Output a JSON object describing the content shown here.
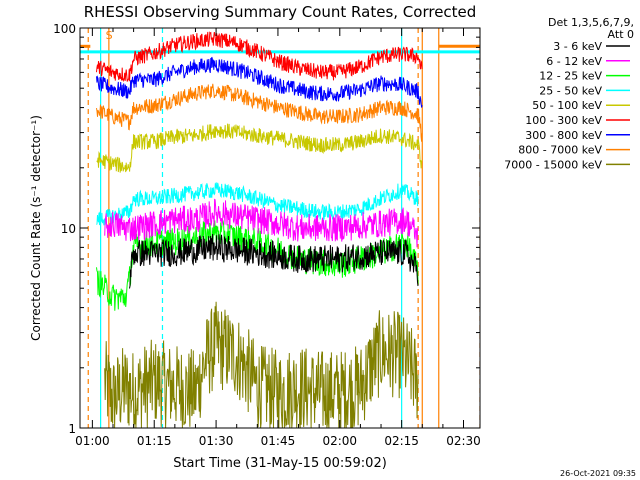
{
  "chart_data": {
    "type": "line",
    "title": "RHESSI Observing Summary Count Rates, Corrected",
    "xlabel": "Start Time (31-May-15 00:59:02)",
    "ylabel": "Corrected Count Rate (s⁻¹ detector⁻¹)",
    "timestamp": "26-Oct-2021 09:35",
    "legend_header": [
      "Det 1,3,5,6,7,9,",
      "Att 0"
    ],
    "legend_position": "right",
    "x_unit": "minutes since 01:00",
    "xlim": [
      -3,
      94
    ],
    "x_ticks": [
      {
        "value": 0,
        "label": "01:00"
      },
      {
        "value": 15,
        "label": "01:15"
      },
      {
        "value": 30,
        "label": "01:30"
      },
      {
        "value": 45,
        "label": "01:45"
      },
      {
        "value": 60,
        "label": "02:00"
      },
      {
        "value": 75,
        "label": "02:15"
      },
      {
        "value": 90,
        "label": "02:30"
      }
    ],
    "y_scale": "log",
    "ylim": [
      1,
      100
    ],
    "y_ticks": [
      {
        "value": 1,
        "label": "1"
      },
      {
        "value": 10,
        "label": "10"
      },
      {
        "value": 100,
        "label": "100"
      }
    ],
    "flag_label": "S",
    "series": [
      {
        "name": "3 - 6 keV",
        "color": "#000000",
        "x": [
          9,
          10,
          20,
          30,
          40,
          50,
          60,
          70,
          76,
          79
        ],
        "y": [
          5.5,
          7.5,
          7.5,
          8,
          7.5,
          7,
          7,
          7.5,
          7.5,
          6
        ]
      },
      {
        "name": "6 - 12 keV",
        "color": "#ff00ff",
        "x": [
          3,
          5,
          8,
          10,
          15,
          20,
          25,
          30,
          40,
          50,
          60,
          70,
          76,
          79
        ],
        "y": [
          10,
          10.5,
          10,
          10,
          10.5,
          11,
          11,
          12,
          11,
          10,
          10,
          10.5,
          11,
          9
        ]
      },
      {
        "name": "12 - 25 keV",
        "color": "#00ff00",
        "x": [
          1,
          5,
          8,
          9,
          10,
          15,
          20,
          25,
          30,
          40,
          50,
          60,
          70,
          76,
          79
        ],
        "y": [
          5.5,
          4.5,
          4.5,
          5.5,
          8,
          8.5,
          8.5,
          9,
          9.5,
          8.5,
          7,
          6.5,
          7.5,
          8.5,
          6
        ]
      },
      {
        "name": "25 - 50 keV",
        "color": "#00ffff",
        "x": [
          1,
          5,
          9,
          10,
          15,
          20,
          25,
          30,
          35,
          40,
          45,
          50,
          55,
          60,
          65,
          70,
          75,
          79
        ],
        "y": [
          11,
          11.5,
          12,
          14,
          14,
          14.5,
          15,
          15.5,
          15,
          14,
          13,
          12.5,
          12,
          12,
          12.5,
          14,
          15.5,
          14
        ]
      },
      {
        "name": "50 - 100 keV",
        "color": "#c8c800",
        "x": [
          1,
          5,
          9,
          10,
          15,
          20,
          25,
          30,
          35,
          40,
          45,
          50,
          55,
          60,
          65,
          70,
          75,
          79,
          80
        ],
        "y": [
          22,
          21,
          20,
          27,
          27,
          28.5,
          29,
          31,
          30,
          29,
          28,
          27,
          26,
          26,
          27,
          29,
          28,
          26,
          20
        ]
      },
      {
        "name": "100 - 300 keV",
        "color": "#ff0000",
        "x": [
          1,
          5,
          9,
          10,
          15,
          20,
          25,
          30,
          35,
          40,
          45,
          50,
          55,
          60,
          65,
          70,
          75,
          79,
          80
        ],
        "y": [
          64,
          60,
          58,
          70,
          75,
          82,
          86,
          88,
          84,
          76,
          68,
          63,
          60,
          60,
          64,
          72,
          74,
          72,
          60
        ]
      },
      {
        "name": "300 - 800 keV",
        "color": "#0000ff",
        "x": [
          1,
          5,
          9,
          10,
          15,
          20,
          25,
          30,
          35,
          40,
          45,
          50,
          55,
          60,
          65,
          70,
          75,
          79,
          80
        ],
        "y": [
          53,
          50,
          48,
          55,
          55,
          60,
          64,
          66,
          62,
          57,
          52,
          49,
          47,
          47,
          49,
          53,
          52,
          48,
          40
        ]
      },
      {
        "name": "800 - 7000 keV",
        "color": "#ff8000",
        "x": [
          1,
          5,
          9,
          10,
          15,
          20,
          25,
          30,
          35,
          40,
          45,
          50,
          55,
          60,
          65,
          70,
          75,
          79,
          80
        ],
        "y": [
          39,
          36,
          34,
          40,
          41,
          44,
          47,
          49,
          46,
          43,
          40,
          38,
          36,
          36,
          37,
          40,
          40,
          37,
          28
        ]
      },
      {
        "name": "7000 - 15000 keV",
        "color": "#808000",
        "x": [
          3,
          5,
          8,
          10,
          15,
          20,
          25,
          28,
          30,
          35,
          40,
          45,
          50,
          55,
          60,
          65,
          68,
          70,
          75,
          79
        ],
        "y": [
          1.7,
          1.4,
          1.6,
          1.5,
          1.7,
          1.6,
          1.5,
          2.3,
          2.6,
          2.3,
          1.6,
          1.5,
          1.6,
          1.5,
          1.5,
          1.6,
          2.1,
          2.4,
          2.3,
          1.7
        ]
      }
    ],
    "vertical_lines": [
      {
        "x": -1,
        "color": "#ff8000",
        "dashed": true
      },
      {
        "x": 2,
        "color": "#00ffff",
        "dashed": false
      },
      {
        "x": 4,
        "color": "#ff8000",
        "dashed": false
      },
      {
        "x": 17,
        "color": "#00ffff",
        "dashed": true
      },
      {
        "x": 75,
        "color": "#00ffff",
        "dashed": false
      },
      {
        "x": 79,
        "color": "#ff8000",
        "dashed": true
      },
      {
        "x": 80,
        "color": "#ff8000",
        "dashed": false
      },
      {
        "x": 84,
        "color": "#ff8000",
        "dashed": false
      },
      {
        "x": 94,
        "color": "#ff8000",
        "dashed": true
      }
    ],
    "horizontal_bars": [
      {
        "x1": -3,
        "x2": 94,
        "y": 76,
        "color": "#00ffff"
      },
      {
        "x1": -3,
        "x2": -0.5,
        "y": 81,
        "color": "#ff8000"
      },
      {
        "x1": 84,
        "x2": 94,
        "y": 81,
        "color": "#ff8000"
      }
    ]
  }
}
